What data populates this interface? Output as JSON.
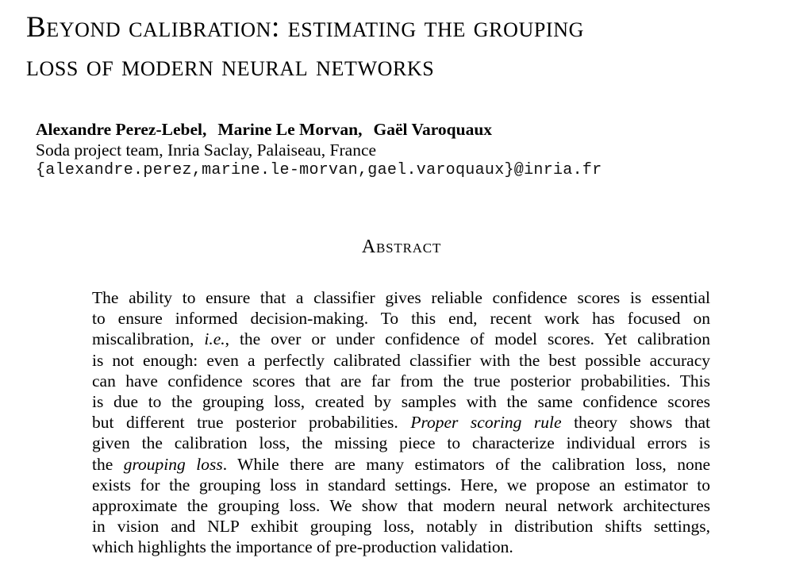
{
  "title": {
    "line1": "Beyond calibration: estimating the grouping",
    "line2": "loss of modern neural networks"
  },
  "authors": {
    "names": [
      "Alexandre Perez-Lebel,",
      "Marine Le Morvan,",
      "Gaël Varoquaux"
    ],
    "affiliation": "Soda project team, Inria Saclay, Palaiseau, France",
    "email": "{alexandre.perez,marine.le-morvan,gael.varoquaux}@inria.fr"
  },
  "abstract": {
    "heading": "Abstract",
    "lines": [
      [
        "The ability to ensure that a classifier gives reliable confidence scores is essential"
      ],
      [
        "to ensure informed decision-making.  To this end, recent work has focused on"
      ],
      [
        "miscalibration, ",
        {
          "em": "i.e."
        },
        ", the over or under confidence of model scores. Yet calibration"
      ],
      [
        "is not enough: even a perfectly calibrated classifier with the best possible accuracy"
      ],
      [
        "can have confidence scores that are far from the true posterior probabilities. This"
      ],
      [
        "is due to the grouping loss, created by samples with the same confidence scores"
      ],
      [
        "but different true posterior probabilities. ",
        {
          "em": "Proper scoring rule"
        },
        " theory shows that"
      ],
      [
        "given the calibration loss, the missing piece to characterize individual errors is"
      ],
      [
        "the ",
        {
          "em": "grouping loss"
        },
        ". While there are many estimators of the calibration loss, none"
      ],
      [
        "exists for the grouping loss in standard settings. Here, we propose an estimator to"
      ],
      [
        "approximate the grouping loss. We show that modern neural network architectures"
      ],
      [
        "in vision and NLP exhibit grouping loss, notably in distribution shifts settings,"
      ],
      [
        "which highlights the importance of pre-production validation."
      ]
    ]
  }
}
